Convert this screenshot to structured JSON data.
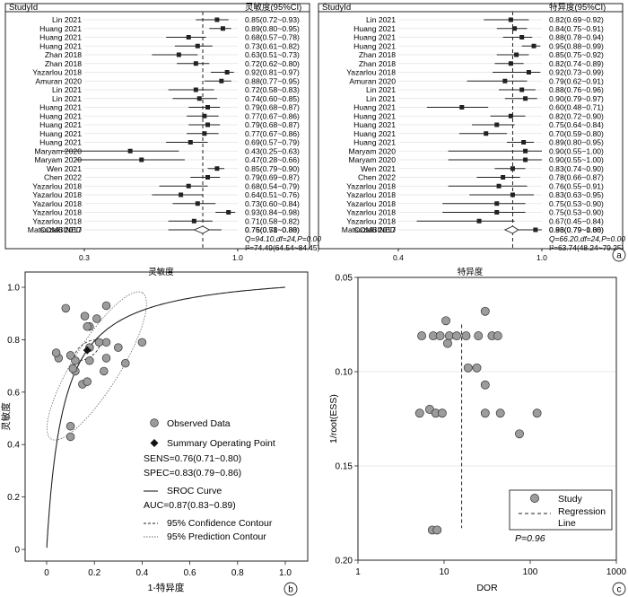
{
  "chart_data": [
    {
      "type": "forest",
      "column_headers": {
        "study": "StudyId",
        "estimate": "灵敏度(95%CI)"
      },
      "studies": [
        {
          "label": "Lin 2021",
          "text": "0.85(0.72~0.93)",
          "est": 0.85,
          "lo": 0.72,
          "hi": 0.93
        },
        {
          "label": "Huang 2021",
          "text": "0.89(0.80~0.95)",
          "est": 0.89,
          "lo": 0.8,
          "hi": 0.95
        },
        {
          "label": "Huang 2021",
          "text": "0.68(0.57~0.78)",
          "est": 0.68,
          "lo": 0.57,
          "hi": 0.78
        },
        {
          "label": "Huang 2021",
          "text": "0.73(0.61~0.82)",
          "est": 0.73,
          "lo": 0.61,
          "hi": 0.82
        },
        {
          "label": "Zhan 2018",
          "text": "0.63(0.51~0.73)",
          "est": 0.63,
          "lo": 0.51,
          "hi": 0.73
        },
        {
          "label": "Zhan 2018",
          "text": "0.72(0.62~0.80)",
          "est": 0.72,
          "lo": 0.62,
          "hi": 0.8
        },
        {
          "label": "Yazarlou 2018",
          "text": "0.92(0.81~0.97)",
          "est": 0.92,
          "lo": 0.81,
          "hi": 0.97
        },
        {
          "label": "Amuran 2020",
          "text": "0.88(0.77~0.95)",
          "est": 0.88,
          "lo": 0.77,
          "hi": 0.95
        },
        {
          "label": "Lin 2021",
          "text": "0.72(0.58~0.83)",
          "est": 0.72,
          "lo": 0.58,
          "hi": 0.83
        },
        {
          "label": "Lin 2021",
          "text": "0.74(0.60~0.85)",
          "est": 0.74,
          "lo": 0.6,
          "hi": 0.85
        },
        {
          "label": "Huang 2021",
          "text": "0.79(0.68~0.87)",
          "est": 0.79,
          "lo": 0.68,
          "hi": 0.87
        },
        {
          "label": "Huang 2021",
          "text": "0.77(0.67~0.86)",
          "est": 0.77,
          "lo": 0.67,
          "hi": 0.86
        },
        {
          "label": "Huang 2021",
          "text": "0.79(0.68~0.87)",
          "est": 0.79,
          "lo": 0.68,
          "hi": 0.87
        },
        {
          "label": "Huang 2021",
          "text": "0.77(0.67~0.86)",
          "est": 0.77,
          "lo": 0.67,
          "hi": 0.86
        },
        {
          "label": "Huang 2021",
          "text": "0.69(0.57~0.79)",
          "est": 0.69,
          "lo": 0.57,
          "hi": 0.79
        },
        {
          "label": "Maryam 2020",
          "text": "0.43(0.25~0.63)",
          "est": 0.43,
          "lo": 0.25,
          "hi": 0.63
        },
        {
          "label": "Maryam 2020",
          "text": "0.47(0.28~0.66)",
          "est": 0.47,
          "lo": 0.28,
          "hi": 0.66
        },
        {
          "label": "Wen 2021",
          "text": "0.85(0.79~0.90)",
          "est": 0.85,
          "lo": 0.79,
          "hi": 0.9
        },
        {
          "label": "Chen 2022",
          "text": "0.79(0.69~0.87)",
          "est": 0.79,
          "lo": 0.69,
          "hi": 0.87
        },
        {
          "label": "Yazarlou 2018",
          "text": "0.68(0.54~0.79)",
          "est": 0.68,
          "lo": 0.54,
          "hi": 0.79
        },
        {
          "label": "Yazarlou 2018",
          "text": "0.64(0.51~0.76)",
          "est": 0.64,
          "lo": 0.51,
          "hi": 0.76
        },
        {
          "label": "Yazarlou 2018",
          "text": "0.73(0.60~0.84)",
          "est": 0.73,
          "lo": 0.6,
          "hi": 0.84
        },
        {
          "label": "Yazarlou 2018",
          "text": "0.93(0.84~0.98)",
          "est": 0.93,
          "lo": 0.84,
          "hi": 0.98
        },
        {
          "label": "Yazarlou 2018",
          "text": "0.71(0.58~0.82)",
          "est": 0.71,
          "lo": 0.58,
          "hi": 0.82
        },
        {
          "label": "Matsuzaki 2017",
          "text": "0.75(0.58~0.88)",
          "est": 0.75,
          "lo": 0.58,
          "hi": 0.88
        }
      ],
      "combined": {
        "label": "COMBINED",
        "text": "0.76(0.71~0.80)",
        "est": 0.76,
        "lo": 0.71,
        "hi": 0.8
      },
      "stats": {
        "line1": "Q=94.10,df=24,P=0.00",
        "line2": "I²=74.49(64.54~84.45)"
      },
      "x_scale": "log",
      "xlim": [
        0.3,
        1.0
      ],
      "xticks": [
        "0.3",
        "1.0"
      ],
      "xlabel": "灵敏度",
      "panel_letter": ""
    },
    {
      "type": "forest",
      "column_headers": {
        "study": "StudyId",
        "estimate": "特异度(95%CI)"
      },
      "studies": [
        {
          "label": "Lin 2021",
          "text": "0.82(0.69~0.92)",
          "est": 0.82,
          "lo": 0.69,
          "hi": 0.92
        },
        {
          "label": "Huang 2021",
          "text": "0.84(0.75~0.91)",
          "est": 0.84,
          "lo": 0.75,
          "hi": 0.91
        },
        {
          "label": "Huang 2021",
          "text": "0.88(0.78~0.94)",
          "est": 0.88,
          "lo": 0.78,
          "hi": 0.94
        },
        {
          "label": "Huang 2021",
          "text": "0.95(0.88~0.99)",
          "est": 0.95,
          "lo": 0.88,
          "hi": 0.99
        },
        {
          "label": "Zhan 2018",
          "text": "0.85(0.75~0.92)",
          "est": 0.85,
          "lo": 0.75,
          "hi": 0.92
        },
        {
          "label": "Zhan 2018",
          "text": "0.82(0.74~0.89)",
          "est": 0.82,
          "lo": 0.74,
          "hi": 0.89
        },
        {
          "label": "Yazarlou 2018",
          "text": "0.92(0.73~0.99)",
          "est": 0.92,
          "lo": 0.73,
          "hi": 0.99
        },
        {
          "label": "Amuran 2020",
          "text": "0.79(0.62~0.91)",
          "est": 0.79,
          "lo": 0.62,
          "hi": 0.91
        },
        {
          "label": "Lin 2021",
          "text": "0.88(0.76~0.96)",
          "est": 0.88,
          "lo": 0.76,
          "hi": 0.96
        },
        {
          "label": "Lin 2021",
          "text": "0.90(0.79~0.97)",
          "est": 0.9,
          "lo": 0.79,
          "hi": 0.97
        },
        {
          "label": "Huang 2021",
          "text": "0.60(0.48~0.71)",
          "est": 0.6,
          "lo": 0.48,
          "hi": 0.71
        },
        {
          "label": "Huang 2021",
          "text": "0.82(0.72~0.90)",
          "est": 0.82,
          "lo": 0.72,
          "hi": 0.9
        },
        {
          "label": "Huang 2021",
          "text": "0.75(0.64~0.84)",
          "est": 0.75,
          "lo": 0.64,
          "hi": 0.84
        },
        {
          "label": "Huang 2021",
          "text": "0.70(0.59~0.80)",
          "est": 0.7,
          "lo": 0.59,
          "hi": 0.8
        },
        {
          "label": "Huang 2021",
          "text": "0.89(0.80~0.95)",
          "est": 0.89,
          "lo": 0.8,
          "hi": 0.95
        },
        {
          "label": "Maryam 2020",
          "text": "0.90(0.55~1.00)",
          "est": 0.9,
          "lo": 0.55,
          "hi": 1.0
        },
        {
          "label": "Maryam 2020",
          "text": "0.90(0.55~1.00)",
          "est": 0.9,
          "lo": 0.55,
          "hi": 1.0
        },
        {
          "label": "Wen 2021",
          "text": "0.83(0.74~0.90)",
          "est": 0.83,
          "lo": 0.74,
          "hi": 0.9
        },
        {
          "label": "Chen 2022",
          "text": "0.78(0.66~0.87)",
          "est": 0.78,
          "lo": 0.66,
          "hi": 0.87
        },
        {
          "label": "Yazarlou 2018",
          "text": "0.76(0.55~0.91)",
          "est": 0.76,
          "lo": 0.55,
          "hi": 0.91
        },
        {
          "label": "Yazarlou 2018",
          "text": "0.83(0.63~0.95)",
          "est": 0.83,
          "lo": 0.63,
          "hi": 0.95
        },
        {
          "label": "Yazarlou 2018",
          "text": "0.75(0.53~0.90)",
          "est": 0.75,
          "lo": 0.53,
          "hi": 0.9
        },
        {
          "label": "Yazarlou 2018",
          "text": "0.75(0.53~0.90)",
          "est": 0.75,
          "lo": 0.53,
          "hi": 0.9
        },
        {
          "label": "Yazarlou 2018",
          "text": "0.67(0.45~0.84)",
          "est": 0.67,
          "lo": 0.45,
          "hi": 0.84
        },
        {
          "label": "Matsuzaki 2017",
          "text": "0.96(0.79~1.00)",
          "est": 0.96,
          "lo": 0.79,
          "hi": 1.0
        }
      ],
      "combined": {
        "label": "COMBINED",
        "text": "0.83(0.79~0.86)",
        "est": 0.83,
        "lo": 0.79,
        "hi": 0.86
      },
      "stats": {
        "line1": "Q=66.20,df=24,P=0.00",
        "line2": "I²=63.74(48.24~79.25)"
      },
      "x_scale": "log",
      "xlim": [
        0.4,
        1.0
      ],
      "xticks": [
        "0.4",
        "1.0"
      ],
      "xlabel": "特异度",
      "panel_letter": "a"
    },
    {
      "type": "scatter",
      "subtype": "sroc",
      "xlim": [
        0,
        1
      ],
      "ylim": [
        0,
        1
      ],
      "xticks": [
        "0",
        "0.2",
        "0.4",
        "0.6",
        "0.8",
        "1.0"
      ],
      "yticks": [
        "0",
        "0.2",
        "0.4",
        "0.6",
        "0.8",
        "1.0"
      ],
      "xlabel": "1-特异度",
      "ylabel": "灵敏度",
      "points": [
        {
          "x": 0.18,
          "y": 0.85
        },
        {
          "x": 0.16,
          "y": 0.89
        },
        {
          "x": 0.12,
          "y": 0.68
        },
        {
          "x": 0.05,
          "y": 0.73
        },
        {
          "x": 0.15,
          "y": 0.63
        },
        {
          "x": 0.18,
          "y": 0.72
        },
        {
          "x": 0.08,
          "y": 0.92
        },
        {
          "x": 0.21,
          "y": 0.88
        },
        {
          "x": 0.12,
          "y": 0.72
        },
        {
          "x": 0.1,
          "y": 0.74
        },
        {
          "x": 0.4,
          "y": 0.79
        },
        {
          "x": 0.18,
          "y": 0.77
        },
        {
          "x": 0.25,
          "y": 0.79
        },
        {
          "x": 0.3,
          "y": 0.77
        },
        {
          "x": 0.11,
          "y": 0.69
        },
        {
          "x": 0.1,
          "y": 0.43
        },
        {
          "x": 0.1,
          "y": 0.47
        },
        {
          "x": 0.17,
          "y": 0.85
        },
        {
          "x": 0.22,
          "y": 0.79
        },
        {
          "x": 0.24,
          "y": 0.68
        },
        {
          "x": 0.17,
          "y": 0.64
        },
        {
          "x": 0.25,
          "y": 0.73
        },
        {
          "x": 0.25,
          "y": 0.93
        },
        {
          "x": 0.33,
          "y": 0.71
        },
        {
          "x": 0.04,
          "y": 0.75
        }
      ],
      "summary_point": {
        "x": 0.17,
        "y": 0.76
      },
      "sroc_auc": 0.87,
      "legend": {
        "observed": "Observed Data",
        "summary": "Summary Operating Point",
        "sens": "SENS=0.76(0.71~0.80)",
        "spec": "SPEC=0.83(0.79~0.86)",
        "curve": "SROC Curve",
        "auc": "AUC=0.87(0.83~0.89)",
        "confidence": "95% Confidence Contour",
        "prediction": "95% Prediction Contour"
      },
      "panel_letter": "b"
    },
    {
      "type": "scatter",
      "subtype": "deeks_funnel",
      "x_scale": "log",
      "xlim": [
        1,
        1000
      ],
      "ylim_reversed": [
        0.05,
        0.2
      ],
      "xticks": [
        "1",
        "10",
        "100",
        "1000"
      ],
      "yticks": [
        "0.05",
        "0.10",
        "0.15",
        "0.20"
      ],
      "xlabel": "DOR",
      "ylabel": "1/root(ESS)",
      "points": [
        {
          "x": 10.5,
          "y": 0.073
        },
        {
          "x": 30,
          "y": 0.068
        },
        {
          "x": 5.5,
          "y": 0.081
        },
        {
          "x": 7.5,
          "y": 0.081
        },
        {
          "x": 9,
          "y": 0.081
        },
        {
          "x": 11.5,
          "y": 0.081
        },
        {
          "x": 14,
          "y": 0.081
        },
        {
          "x": 18,
          "y": 0.081
        },
        {
          "x": 25,
          "y": 0.081
        },
        {
          "x": 36,
          "y": 0.081
        },
        {
          "x": 42,
          "y": 0.081
        },
        {
          "x": 11,
          "y": 0.085
        },
        {
          "x": 19,
          "y": 0.098
        },
        {
          "x": 24,
          "y": 0.098
        },
        {
          "x": 30,
          "y": 0.107
        },
        {
          "x": 6.8,
          "y": 0.12
        },
        {
          "x": 5.2,
          "y": 0.122
        },
        {
          "x": 8.0,
          "y": 0.122
        },
        {
          "x": 9.5,
          "y": 0.122
        },
        {
          "x": 30,
          "y": 0.122
        },
        {
          "x": 45,
          "y": 0.122
        },
        {
          "x": 120,
          "y": 0.122
        },
        {
          "x": 75,
          "y": 0.133
        },
        {
          "x": 7.3,
          "y": 0.184
        },
        {
          "x": 8.3,
          "y": 0.184
        }
      ],
      "regression_x": 16,
      "legend": {
        "study": "Study",
        "line": "Regression Line"
      },
      "p_value": "P=0.96",
      "panel_letter": "c"
    }
  ]
}
